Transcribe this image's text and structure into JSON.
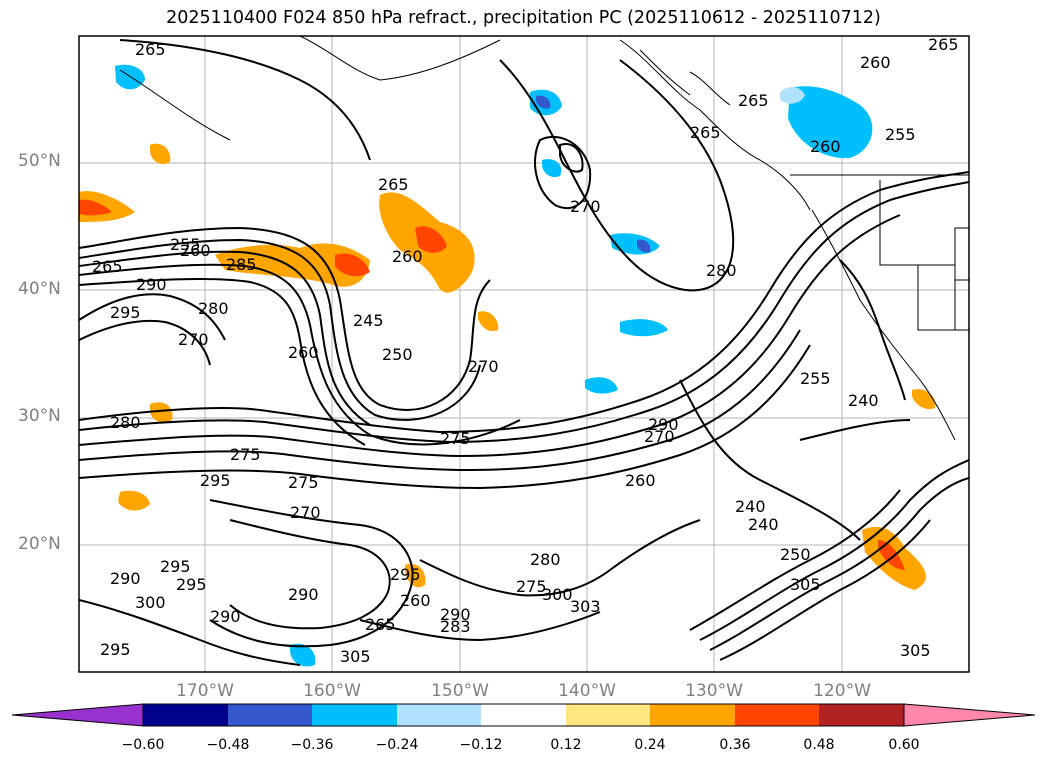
{
  "title": "2025110400 F024 850 hPa refract., precipitation PC (2025110612 - 2025110712)",
  "lat_labels": [
    "50°N",
    "40°N",
    "30°N",
    "20°N"
  ],
  "lon_labels": [
    "170°W",
    "160°W",
    "150°W",
    "140°W",
    "130°W",
    "120°W"
  ],
  "contour_labels": [
    "265",
    "260",
    "265",
    "265",
    "260",
    "265",
    "255",
    "260",
    "270",
    "280",
    "265",
    "260",
    "270",
    "285",
    "290",
    "295",
    "280",
    "270",
    "260",
    "245",
    "250",
    "270",
    "275",
    "240",
    "255",
    "265",
    "275",
    "295",
    "275",
    "290",
    "280",
    "270",
    "260",
    "240",
    "250",
    "255",
    "295",
    "295",
    "290",
    "300",
    "290",
    "290",
    "295",
    "305",
    "260",
    "295",
    "280",
    "275",
    "300",
    "303",
    "265",
    "305",
    "290",
    "283",
    "240",
    "305"
  ],
  "colorbar": {
    "ticks": [
      "−0.60",
      "−0.48",
      "−0.36",
      "−0.24",
      "−0.12",
      "0.12",
      "0.24",
      "0.36",
      "0.48",
      "0.60"
    ],
    "colors": [
      "#9932cc",
      "#00008b",
      "#3358cc",
      "#00bfff",
      "#b0e2ff",
      "#ffffff",
      "#ffe680",
      "#ffa500",
      "#ff4500",
      "#b22222",
      "#ff88aa"
    ]
  }
}
